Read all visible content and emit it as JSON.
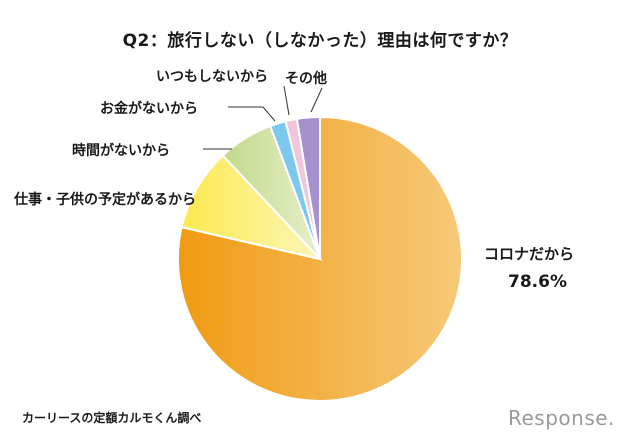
{
  "title": "Q2：旅行しない（しなかった）理由は何ですか？",
  "source": "カーリースの定額カルモくん調べ",
  "logo": "Response.",
  "chart_data": {
    "type": "pie",
    "title": "Q2：旅行しない（しなかった）理由は何ですか？",
    "start_angle": "12 o'clock, clockwise",
    "categories": [
      "コロナだから",
      "仕事・子供の予定があるから",
      "時間がないから",
      "お金がないから",
      "いつもしないから",
      "その他"
    ],
    "values": [
      78.6,
      9.4,
      6.3,
      1.8,
      1.3,
      2.6
    ],
    "colors": [
      "#f3a62b",
      "#fbed6a",
      "#c9dd95",
      "#7cc8ee",
      "#f1c6dc",
      "#a691cf"
    ],
    "annotations": [
      {
        "label": "コロナだから",
        "value": "78.6%"
      }
    ]
  },
  "labels": {
    "corona": "コロナだから",
    "corona_pct": "78.6%",
    "work": "仕事・子供の予定があるから",
    "time": "時間がないから",
    "money": "お金がないから",
    "never": "いつもしないから",
    "other": "その他"
  }
}
